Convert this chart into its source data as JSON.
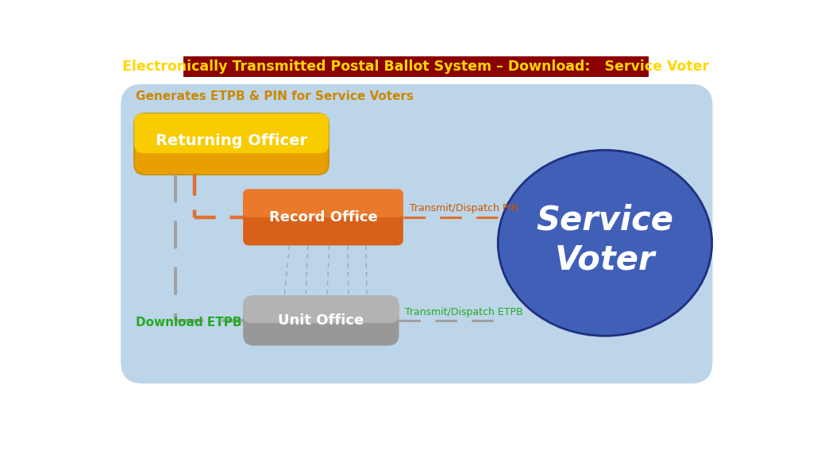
{
  "title": "Electronically Transmitted Postal Ballot System – Download:   Service Voter",
  "title_bg": "#8B0000",
  "title_color": "#FFD700",
  "bg_color": "#BDD5E8",
  "main_bg": "#ffffff",
  "label_generates": "Generates ETPB & PIN for Service Voters",
  "label_generates_color": "#CC8800",
  "label_download": "Download ETPB",
  "label_download_color": "#22AA22",
  "box_ro_label": "Returning Officer",
  "box_ro_color": "#F5C200",
  "box_ro_border": "#C8960A",
  "box_record_label": "Record Office",
  "box_record_color": "#E87020",
  "box_record_top": "#F09040",
  "box_unit_label": "Unit Office",
  "box_unit_color": "#A8A8A8",
  "box_unit_dark": "#888888",
  "circle_label1": "Service",
  "circle_label2": "Voter",
  "circle_color": "#4060B8",
  "transmit_pin_label": "Transmit/Dispatch PIN",
  "transmit_pin_color": "#CC5500",
  "transmit_etpb_label": "Transmit/Dispatch ETPB",
  "transmit_etpb_color": "#22AA22",
  "gray_dash_color": "#A0A0A0",
  "orange_dash_color": "#E07030",
  "fan_line_color": "#90A8C8"
}
